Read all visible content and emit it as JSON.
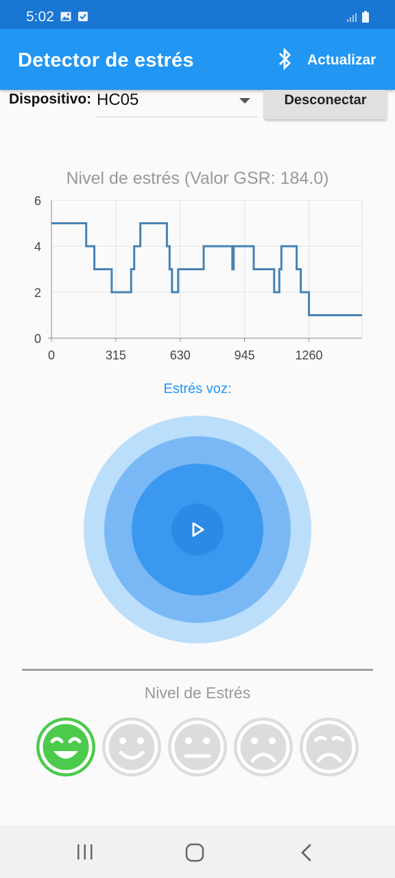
{
  "status_bar": {
    "time": "5:02",
    "icons": [
      "image-icon",
      "checkbox-icon",
      "signal-icon",
      "battery-icon"
    ]
  },
  "app_bar": {
    "title": "Detector de estrés",
    "bluetooth_icon": "bluetooth-icon",
    "refresh_label": "Actualizar"
  },
  "device": {
    "label": "Dispositivo:",
    "selected": "HC05",
    "disconnect_label": "Desconectar"
  },
  "chart_data": {
    "type": "line",
    "title": "Nivel de estrés (Valor GSR: 184.0)",
    "xlabel": "",
    "ylabel": "",
    "xlim": [
      0,
      1520
    ],
    "ylim": [
      0,
      6
    ],
    "x_ticks": [
      0,
      315,
      630,
      945,
      1260
    ],
    "y_ticks": [
      0,
      2,
      4,
      6
    ],
    "grid": true,
    "color": "#4682b4",
    "step_points": [
      [
        0,
        5
      ],
      [
        170,
        5
      ],
      [
        170,
        4
      ],
      [
        210,
        4
      ],
      [
        210,
        3
      ],
      [
        295,
        3
      ],
      [
        295,
        2
      ],
      [
        390,
        2
      ],
      [
        390,
        3
      ],
      [
        405,
        3
      ],
      [
        405,
        4
      ],
      [
        435,
        4
      ],
      [
        435,
        5
      ],
      [
        565,
        5
      ],
      [
        565,
        4
      ],
      [
        578,
        4
      ],
      [
        578,
        3
      ],
      [
        590,
        3
      ],
      [
        590,
        2
      ],
      [
        620,
        2
      ],
      [
        620,
        3
      ],
      [
        745,
        3
      ],
      [
        745,
        4
      ],
      [
        885,
        4
      ],
      [
        885,
        3
      ],
      [
        892,
        3
      ],
      [
        892,
        4
      ],
      [
        990,
        4
      ],
      [
        990,
        3
      ],
      [
        1090,
        3
      ],
      [
        1090,
        2
      ],
      [
        1115,
        2
      ],
      [
        1115,
        3
      ],
      [
        1125,
        3
      ],
      [
        1125,
        4
      ],
      [
        1200,
        4
      ],
      [
        1200,
        3
      ],
      [
        1220,
        3
      ],
      [
        1220,
        2
      ],
      [
        1260,
        2
      ],
      [
        1260,
        1
      ],
      [
        1520,
        1
      ]
    ]
  },
  "voice": {
    "label": "Estrés voz:",
    "play_icon": "play-icon",
    "ring_colors": [
      "#bbdefb",
      "#7ab8f5",
      "#3a98f0",
      "#2b8ae4"
    ]
  },
  "stress_level": {
    "title": "Nivel de Estrés",
    "active_color": "#4cca4c",
    "inactive_color": "#dcdcdc",
    "faces": [
      {
        "icon": "laughing-face-icon",
        "active": true
      },
      {
        "icon": "smiling-face-icon",
        "active": false
      },
      {
        "icon": "neutral-face-icon",
        "active": false
      },
      {
        "icon": "sad-face-icon",
        "active": false
      },
      {
        "icon": "very-sad-face-icon",
        "active": false
      }
    ]
  },
  "nav_bar": {
    "recent_icon": "recent-apps-icon",
    "home_icon": "home-icon",
    "back_icon": "back-icon"
  }
}
